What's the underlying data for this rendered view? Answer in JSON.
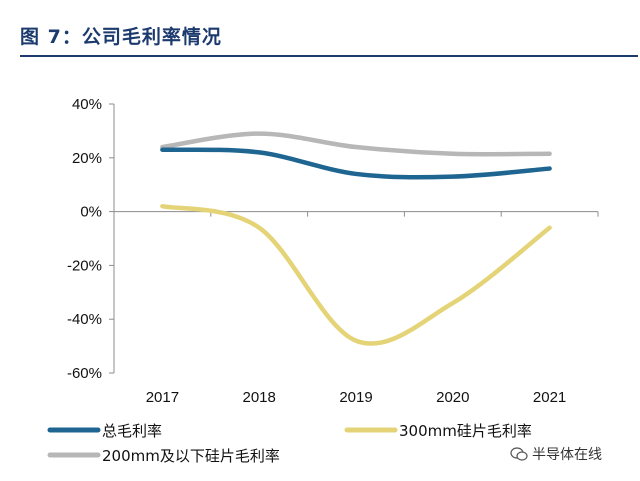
{
  "figure_title": "图 7：公司毛利率情况",
  "watermark": "半导体在线",
  "chart_data": {
    "type": "line",
    "title": "公司毛利率情况",
    "x": [
      "2017",
      "2018",
      "2019",
      "2020",
      "2021"
    ],
    "ylim": [
      -60,
      40
    ],
    "yticks": [
      40,
      20,
      0,
      -20,
      -40,
      -60
    ],
    "ytick_labels": [
      "40%",
      "20%",
      "0%",
      "-20%",
      "-40%",
      "-60%"
    ],
    "xlabel": "",
    "ylabel": "",
    "legend_position": "bottom",
    "series": [
      {
        "name": "总毛利率",
        "color": "#1f6592",
        "values": [
          23,
          22,
          14,
          13,
          16
        ]
      },
      {
        "name": "300mm硅片毛利率",
        "color": "#e4d477",
        "values": [
          2,
          -6,
          -48,
          -34,
          -6
        ]
      },
      {
        "name": "200mm及以下硅片毛利率",
        "color": "#b7b7b7",
        "values": [
          24,
          29,
          24,
          21.5,
          21.5
        ]
      }
    ]
  }
}
